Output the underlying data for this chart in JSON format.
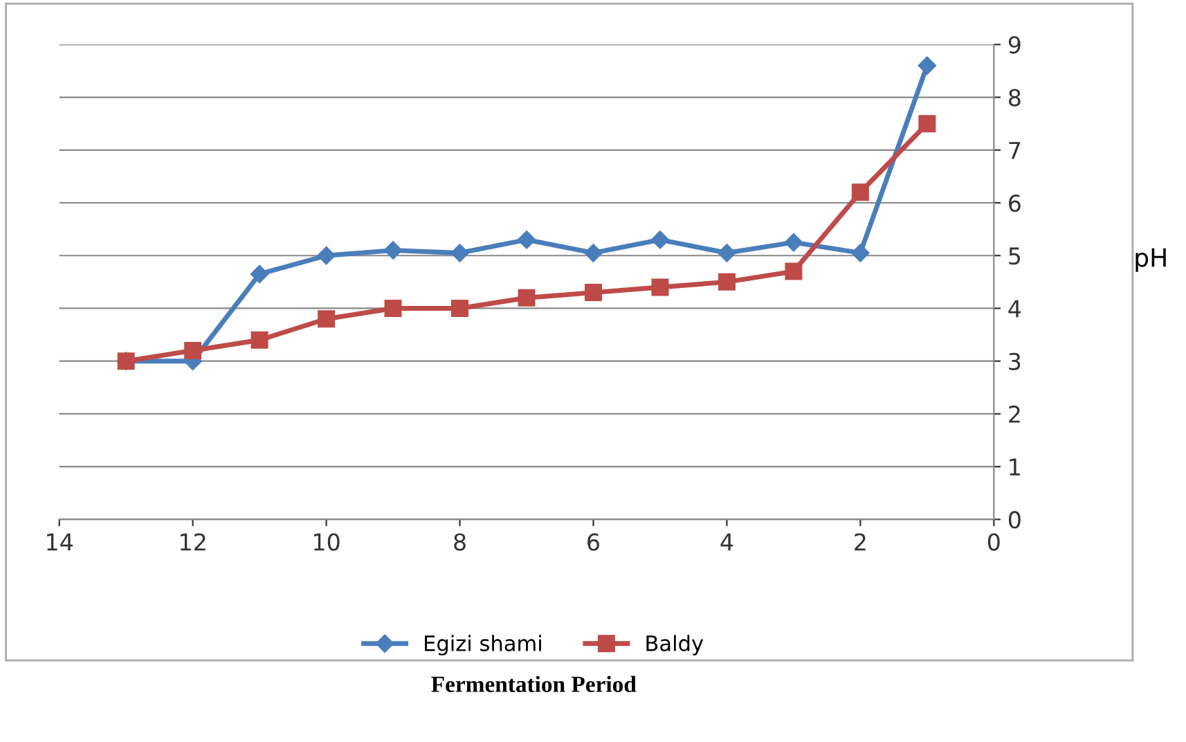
{
  "chart_data": {
    "type": "line",
    "annotations": [
      "Fermentation Period"
    ],
    "ylabel": "pH",
    "x": [
      13,
      12,
      11,
      10,
      9,
      8,
      7,
      6,
      5,
      4,
      3,
      2,
      1
    ],
    "series": [
      {
        "name": "Egizi shami",
        "color": "#4a7ebb",
        "marker": "diamond",
        "values": [
          3.0,
          3.0,
          4.65,
          5.0,
          5.1,
          5.05,
          5.3,
          5.05,
          5.3,
          5.05,
          5.25,
          5.05,
          8.6
        ]
      },
      {
        "name": "Baldy",
        "color": "#be4b48",
        "marker": "square",
        "values": [
          3.0,
          3.2,
          3.4,
          3.8,
          4.0,
          4.0,
          4.2,
          4.3,
          4.4,
          4.5,
          4.7,
          6.2,
          7.5
        ]
      }
    ],
    "xlim": [
      14,
      0
    ],
    "xticks": [
      14,
      12,
      10,
      8,
      6,
      4,
      2,
      0
    ],
    "ylim": [
      0,
      9
    ],
    "yticks": [
      0,
      1,
      2,
      3,
      4,
      5,
      6,
      7,
      8,
      9
    ],
    "grid": "y",
    "legend": "bottom",
    "line_style": "solid"
  }
}
